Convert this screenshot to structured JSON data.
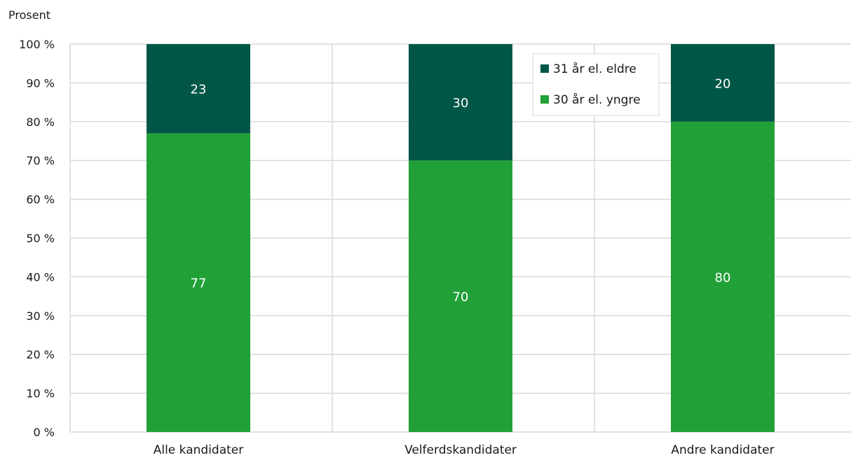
{
  "chart_data": {
    "type": "bar",
    "stacked": true,
    "ylabel": "Prosent",
    "ylim": [
      0,
      100
    ],
    "yticks": [
      "0 %",
      "10 %",
      "20 %",
      "30 %",
      "40 %",
      "50 %",
      "60 %",
      "70 %",
      "80 %",
      "90 %",
      "100 %"
    ],
    "categories": [
      "Alle kandidater",
      "Velferdskandidater",
      "Andre kandidater"
    ],
    "series": [
      {
        "name": "30 år el. yngre",
        "values": [
          77,
          70,
          80
        ],
        "color": "#21a038"
      },
      {
        "name": "31 år el. eldre",
        "values": [
          23,
          30,
          20
        ],
        "color": "#005747"
      }
    ],
    "legend": {
      "position": "top-right",
      "entries": [
        "31 år el. eldre",
        "30 år el. yngre"
      ]
    },
    "grid": true,
    "grid_color": "#d9d9d9"
  }
}
